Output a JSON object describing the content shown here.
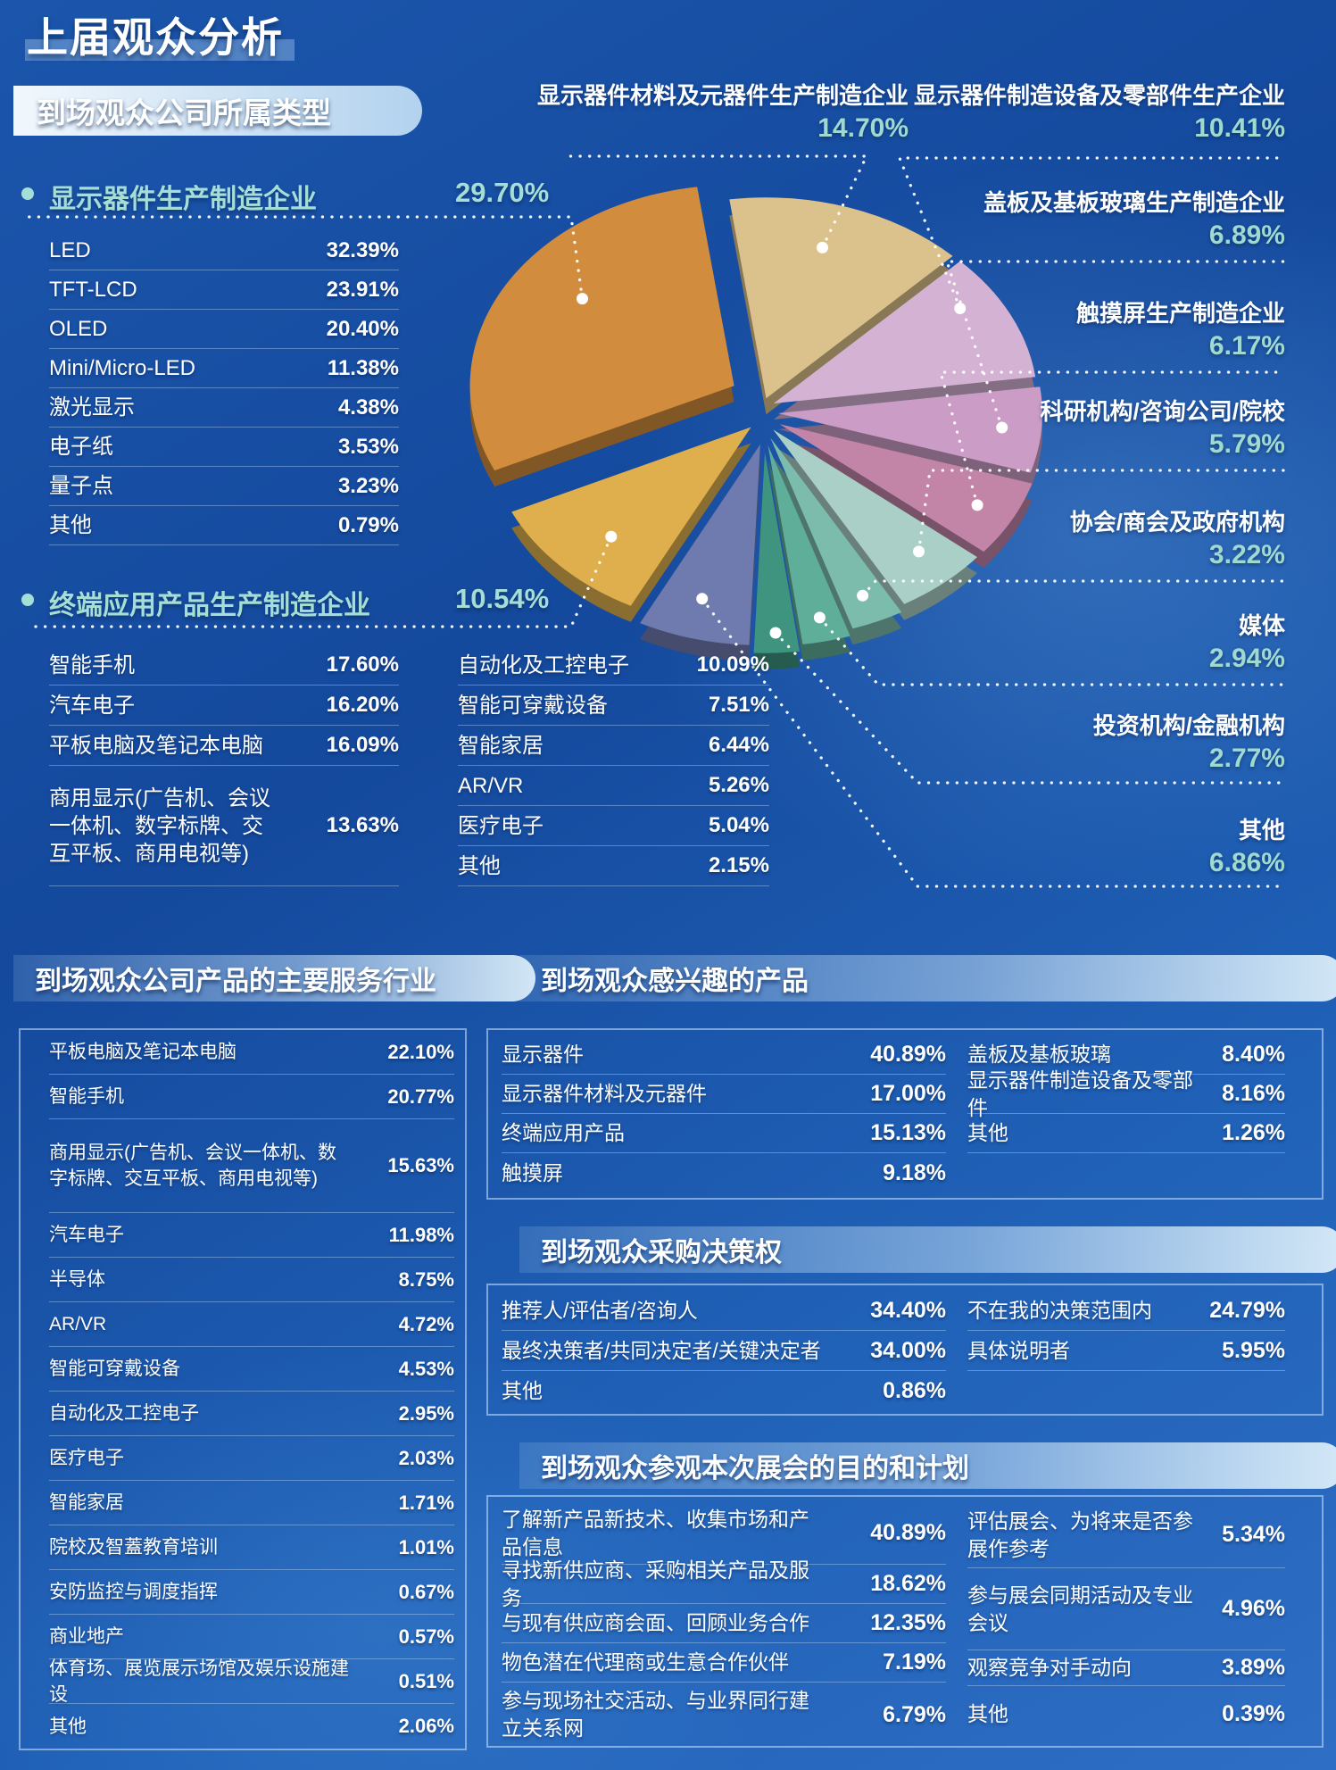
{
  "title": "上届观众分析",
  "accent_color": "#a5ded6",
  "section_type": {
    "header": "到场观众公司所属类型",
    "group1": {
      "label": "显示器件生产制造企业",
      "pct": "29.70%",
      "items": [
        {
          "label": "LED",
          "value": "32.39%"
        },
        {
          "label": "TFT-LCD",
          "value": "23.91%"
        },
        {
          "label": "OLED",
          "value": "20.40%"
        },
        {
          "label": "Mini/Micro-LED",
          "value": "11.38%"
        },
        {
          "label": "激光显示",
          "value": "4.38%"
        },
        {
          "label": "电子纸",
          "value": "3.53%"
        },
        {
          "label": "量子点",
          "value": "3.23%"
        },
        {
          "label": "其他",
          "value": "0.79%"
        }
      ]
    },
    "group2": {
      "label": "终端应用产品生产制造企业",
      "pct": "10.54%",
      "items_left": [
        {
          "label": "智能手机",
          "value": "17.60%"
        },
        {
          "label": "汽车电子",
          "value": "16.20%"
        },
        {
          "label": "平板电脑及笔记本电脑",
          "value": "16.09%"
        },
        {
          "label": "商用显示(广告机、会议一体机、数字标牌、交互平板、商用电视等)",
          "value": "13.63%"
        }
      ],
      "items_right": [
        {
          "label": "自动化及工控电子",
          "value": "10.09%"
        },
        {
          "label": "智能可穿戴设备",
          "value": "7.51%"
        },
        {
          "label": "智能家居",
          "value": "6.44%"
        },
        {
          "label": "AR/VR",
          "value": "5.26%"
        },
        {
          "label": "医疗电子",
          "value": "5.04%"
        },
        {
          "label": "其他",
          "value": "2.15%"
        }
      ]
    }
  },
  "pie_labels": [
    {
      "text": "显示器件材料及元器件生产制造企业",
      "pct": "14.70%"
    },
    {
      "text": "显示器件制造设备及零部件生产企业",
      "pct": "10.41%"
    },
    {
      "text": "盖板及基板玻璃生产制造企业",
      "pct": "6.89%"
    },
    {
      "text": "触摸屏生产制造企业",
      "pct": "6.17%"
    },
    {
      "text": "科研机构/咨询公司/院校",
      "pct": "5.79%"
    },
    {
      "text": "协会/商会及政府机构",
      "pct": "3.22%"
    },
    {
      "text": "媒体",
      "pct": "2.94%"
    },
    {
      "text": "投资机构/金融机构",
      "pct": "2.77%"
    },
    {
      "text": "其他",
      "pct": "6.86%"
    }
  ],
  "section_industry": {
    "header": "到场观众公司产品的主要服务行业",
    "rows": [
      {
        "label": "平板电脑及笔记本电脑",
        "value": "22.10%"
      },
      {
        "label": "智能手机",
        "value": "20.77%"
      },
      {
        "label": "商用显示(广告机、会议一体机、数字标牌、交互平板、商用电视等)",
        "value": "15.63%"
      },
      {
        "label": "汽车电子",
        "value": "11.98%"
      },
      {
        "label": "半导体",
        "value": "8.75%"
      },
      {
        "label": "AR/VR",
        "value": "4.72%"
      },
      {
        "label": "智能可穿戴设备",
        "value": "4.53%"
      },
      {
        "label": "自动化及工控电子",
        "value": "2.95%"
      },
      {
        "label": "医疗电子",
        "value": "2.03%"
      },
      {
        "label": "智能家居",
        "value": "1.71%"
      },
      {
        "label": "院校及智蓋教育培训",
        "value": "1.01%"
      },
      {
        "label": "安防监控与调度指挥",
        "value": "0.67%"
      },
      {
        "label": "商业地产",
        "value": "0.57%"
      },
      {
        "label": "体育场、展览展示场馆及娱乐设施建设",
        "value": "0.51%"
      },
      {
        "label": "其他",
        "value": "2.06%"
      }
    ]
  },
  "section_interest": {
    "header": "到场观众感兴趣的产品",
    "left": [
      {
        "label": "显示器件",
        "value": "40.89%"
      },
      {
        "label": "显示器件材料及元器件",
        "value": "17.00%"
      },
      {
        "label": "终端应用产品",
        "value": "15.13%"
      },
      {
        "label": "触摸屏",
        "value": "9.18%"
      }
    ],
    "right": [
      {
        "label": "盖板及基板玻璃",
        "value": "8.40%"
      },
      {
        "label": "显示器件制造设备及零部件",
        "value": "8.16%"
      },
      {
        "label": "其他",
        "value": "1.26%"
      }
    ]
  },
  "section_decision": {
    "header": "到场观众采购决策权",
    "left": [
      {
        "label": "推荐人/评估者/咨询人",
        "value": "34.40%"
      },
      {
        "label": "最终决策者/共同决定者/关键决定者",
        "value": "34.00%"
      },
      {
        "label": "其他",
        "value": "0.86%"
      }
    ],
    "right": [
      {
        "label": "不在我的决策范围内",
        "value": "24.79%"
      },
      {
        "label": "具体说明者",
        "value": "5.95%"
      }
    ]
  },
  "section_purpose": {
    "header": "到场观众参观本次展会的目的和计划",
    "left": [
      {
        "label": "了解新产品新技术、收集市场和产品信息",
        "value": "40.89%"
      },
      {
        "label": "寻找新供应商、采购相关产品及服务",
        "value": "18.62%"
      },
      {
        "label": "与现有供应商会面、回顾业务合作",
        "value": "12.35%"
      },
      {
        "label": "物色潜在代理商或生意合作伙伴",
        "value": "7.19%"
      },
      {
        "label": "参与现场社交活动、与业界同行建立关系网",
        "value": "6.79%"
      }
    ],
    "right": [
      {
        "label": "评估展会、为将来是否参展作参考",
        "value": "5.34%"
      },
      {
        "label": "参与展会同期活动及专业会议",
        "value": "4.96%"
      },
      {
        "label": "观察竞争对手动向",
        "value": "3.89%"
      },
      {
        "label": "其他",
        "value": "0.39%"
      }
    ]
  },
  "chart_data": {
    "type": "pie",
    "title": "到场观众公司所属类型",
    "legend_position": "around",
    "slices": [
      {
        "label": "显示器件生产制造企业",
        "value": 29.7,
        "color": "#d28c3e"
      },
      {
        "label": "显示器件材料及元器件生产制造企业",
        "value": 14.7,
        "color": "#dbc18b"
      },
      {
        "label": "显示器件制造设备及零部件生产企业",
        "value": 10.41,
        "color": "#d4b2d3"
      },
      {
        "label": "盖板及基板玻璃生产制造企业",
        "value": 6.89,
        "color": "#cb9dc6"
      },
      {
        "label": "触摸屏生产制造企业",
        "value": 6.17,
        "color": "#c285a8"
      },
      {
        "label": "科研机构/咨询公司/院校",
        "value": 5.79,
        "color": "#a9cfc6"
      },
      {
        "label": "协会/商会及政府机构",
        "value": 3.22,
        "color": "#7cbcad"
      },
      {
        "label": "媒体",
        "value": 2.94,
        "color": "#5fae9a"
      },
      {
        "label": "投资机构/金融机构",
        "value": 2.77,
        "color": "#3e947f"
      },
      {
        "label": "其他",
        "value": 6.86,
        "color": "#6f7baf"
      },
      {
        "label": "终端应用产品生产制造企业",
        "value": 10.54,
        "color": "#dfaf4d"
      }
    ]
  }
}
